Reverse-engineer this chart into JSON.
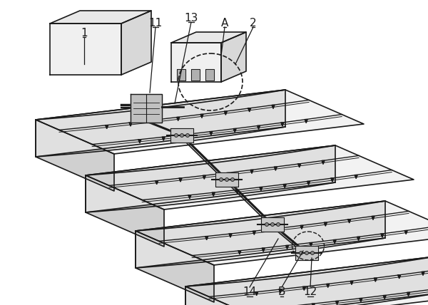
{
  "bg_color": "#ffffff",
  "line_color": "#1a1a1a",
  "figsize": [
    6.0,
    4.28
  ],
  "dpi": 100,
  "n_terraces": 4,
  "terrace_fill_top": "#f2f2f2",
  "terrace_fill_front": "#e0e0e0",
  "terrace_fill_left": "#d0d0d0",
  "box_fill": "#f0f0f0",
  "box_fill_top": "#e8e8e8",
  "box_fill_side": "#d8d8d8"
}
